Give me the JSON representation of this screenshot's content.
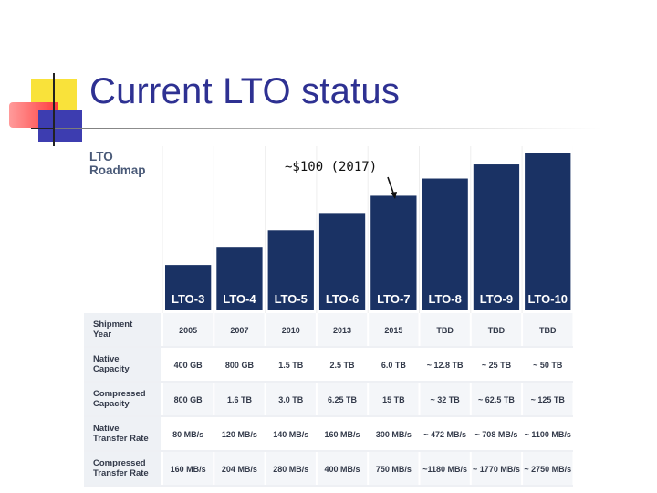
{
  "slide": {
    "title": "Current LTO status",
    "annotation": "~$100 (2017)"
  },
  "chart_data": {
    "type": "bar",
    "title_lines": [
      "LTO",
      "Roadmap"
    ],
    "categories": [
      "LTO-3",
      "LTO-4",
      "LTO-5",
      "LTO-6",
      "LTO-7",
      "LTO-8",
      "LTO-9",
      "LTO-10"
    ],
    "relative_bar_heights": [
      0.29,
      0.4,
      0.51,
      0.62,
      0.73,
      0.84,
      0.93,
      1.0
    ],
    "bar_color": "#1a3264",
    "table": {
      "row_headers": [
        [
          "Shipment",
          "Year"
        ],
        [
          "Native",
          "Capacity"
        ],
        [
          "Compressed",
          "Capacity"
        ],
        [
          "Native",
          "Transfer Rate"
        ],
        [
          "Compressed",
          "Transfer Rate"
        ]
      ],
      "rows": [
        [
          "2005",
          "2007",
          "2010",
          "2013",
          "2015",
          "TBD",
          "TBD",
          "TBD"
        ],
        [
          "400 GB",
          "800 GB",
          "1.5 TB",
          "2.5 TB",
          "6.0 TB",
          "~ 12.8 TB",
          "~ 25 TB",
          "~ 50 TB"
        ],
        [
          "800 GB",
          "1.6 TB",
          "3.0 TB",
          "6.25 TB",
          "15 TB",
          "~ 32 TB",
          "~ 62.5 TB",
          "~ 125 TB"
        ],
        [
          "80 MB/s",
          "120 MB/s",
          "140 MB/s",
          "160 MB/s",
          "300 MB/s",
          "~ 472 MB/s",
          "~ 708 MB/s",
          "~ 1100 MB/s"
        ],
        [
          "160 MB/s",
          "204 MB/s",
          "280 MB/s",
          "400 MB/s",
          "750 MB/s",
          "~1180 MB/s",
          "~ 1770 MB/s",
          "~ 2750 MB/s"
        ]
      ]
    },
    "annotation_target": "LTO-7"
  }
}
